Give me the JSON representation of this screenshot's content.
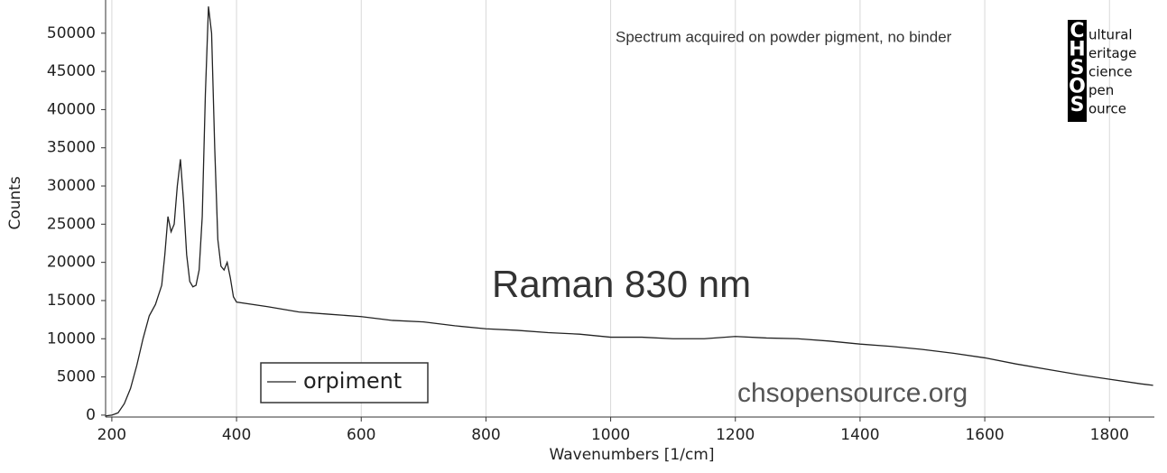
{
  "chart_data": {
    "type": "line",
    "x_label": "Wavenumbers [1/cm]",
    "y_label": "Counts",
    "annotations": [
      "Spectrum acquired on powder pigment, no binder",
      "Raman 830 nm",
      "chsopensource.org"
    ],
    "x": [
      190,
      200,
      210,
      220,
      230,
      240,
      250,
      260,
      270,
      280,
      285,
      290,
      295,
      300,
      305,
      310,
      315,
      320,
      325,
      330,
      335,
      340,
      345,
      350,
      355,
      360,
      365,
      370,
      375,
      380,
      385,
      390,
      395,
      400,
      450,
      500,
      550,
      600,
      650,
      700,
      750,
      800,
      850,
      900,
      950,
      1000,
      1050,
      1100,
      1150,
      1200,
      1250,
      1300,
      1350,
      1400,
      1450,
      1500,
      1550,
      1600,
      1650,
      1700,
      1750,
      1800,
      1850,
      1870
    ],
    "series": [
      {
        "name": "orpiment",
        "color": "#222222",
        "values": [
          -100,
          0,
          300,
          1500,
          3500,
          6500,
          10000,
          13000,
          14500,
          17000,
          21000,
          26000,
          24000,
          25000,
          30000,
          33500,
          28000,
          21000,
          17500,
          16800,
          17000,
          19000,
          26000,
          42000,
          53500,
          50000,
          35000,
          23000,
          19500,
          19000,
          20000,
          18000,
          15500,
          14800,
          14200,
          13500,
          13200,
          12900,
          12400,
          12200,
          11700,
          11300,
          11100,
          10800,
          10600,
          10200,
          10200,
          10000,
          10000,
          10300,
          10100,
          10000,
          9700,
          9300,
          9000,
          8600,
          8100,
          7500,
          6700,
          6000,
          5300,
          4700,
          4100,
          3900
        ]
      }
    ],
    "xlim": [
      190,
      1872
    ],
    "xticks": [
      200,
      400,
      600,
      800,
      1000,
      1200,
      1400,
      1600,
      1800
    ],
    "ylim": [
      -250,
      54350
    ],
    "yticks": [
      0,
      5000,
      10000,
      15000,
      20000,
      25000,
      30000,
      35000,
      40000,
      45000,
      50000
    ],
    "grid": "x",
    "grid_color": "#d8d8d8"
  },
  "logo": {
    "letters": [
      "C",
      "H",
      "S",
      "O",
      "S"
    ],
    "words": [
      "ultural",
      "eritage",
      "cience",
      "pen",
      "ource"
    ]
  }
}
